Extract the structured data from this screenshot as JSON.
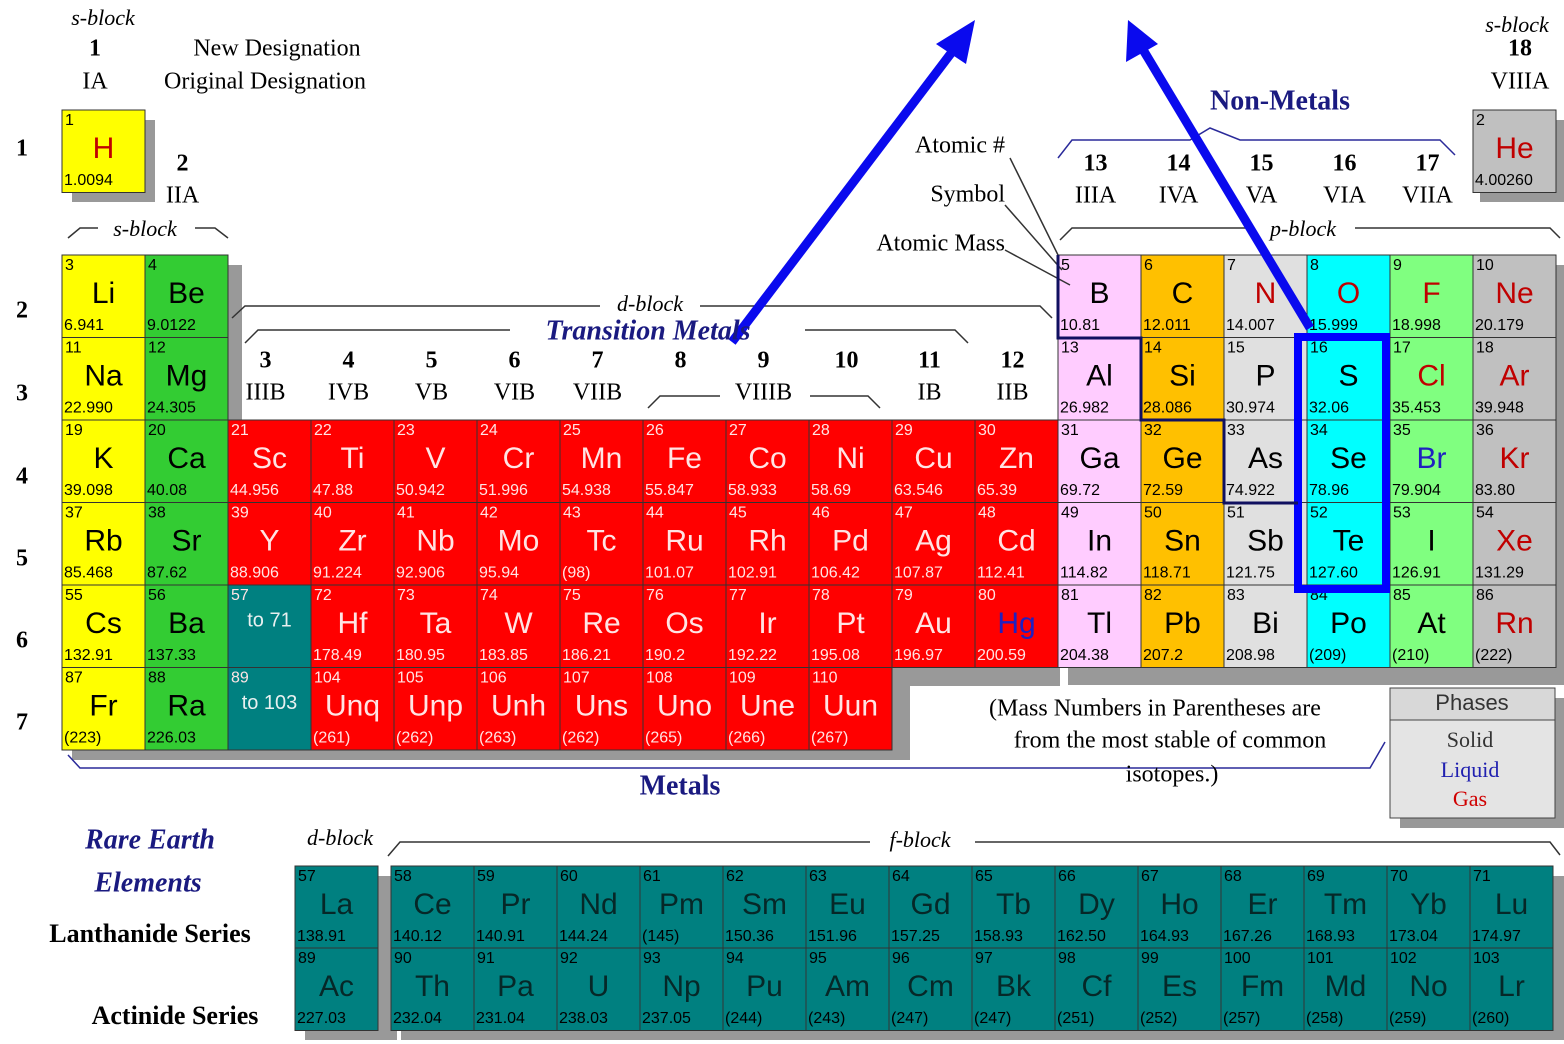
{
  "header": {
    "s_block_left": "s-block",
    "group_1_new": "1",
    "new_designation": "New Designation",
    "group_1_original": "IA",
    "original_designation": "Original Designation",
    "s_block_right": "s-block",
    "group_18_new": "18",
    "group_18_original": "VIIIA"
  },
  "groups": [
    {
      "new": "2",
      "original": "IIA"
    },
    {
      "new": "3",
      "original": "IIIB"
    },
    {
      "new": "4",
      "original": "IVB"
    },
    {
      "new": "5",
      "original": "VB"
    },
    {
      "new": "6",
      "original": "VIB"
    },
    {
      "new": "7",
      "original": "VIIB"
    },
    {
      "new": "8"
    },
    {
      "new": "9",
      "original": "VIIIB"
    },
    {
      "new": "10"
    },
    {
      "new": "11",
      "original": "IB"
    },
    {
      "new": "12",
      "original": "IIB"
    },
    {
      "new": "13",
      "original": "IIIA"
    },
    {
      "new": "14",
      "original": "IVA"
    },
    {
      "new": "15",
      "original": "VA"
    },
    {
      "new": "16",
      "original": "VIA"
    },
    {
      "new": "17",
      "original": "VIIA"
    }
  ],
  "labels": {
    "s_block_mid": "s-block",
    "d_block": "d-block",
    "transition_metals": "Transition Metals",
    "non_metals": "Non-Metals",
    "p_block": "p-block",
    "metals": "Metals",
    "rare_earth_1": "Rare Earth",
    "rare_earth_2": "Elements",
    "d_block_bottom": "d-block",
    "f_block": "f-block"
  },
  "key": {
    "atomic_number": "Atomic #",
    "symbol": "Symbol",
    "atomic_mass": "Atomic Mass"
  },
  "note": [
    "(Mass Numbers in Parentheses are",
    "from the most stable of common",
    "isotopes.)"
  ],
  "phases": {
    "title": "Phases",
    "solid": "Solid",
    "liquid": "Liquid",
    "gas": "Gas"
  },
  "period_labels": [
    "1",
    "2",
    "3",
    "4",
    "5",
    "6",
    "7"
  ],
  "table": {
    "periods": [
      [
        {
          "number": 1,
          "symbol": "H",
          "mass": "1.0094",
          "phase": "gas"
        },
        {
          "number": 2,
          "symbol": "He",
          "mass": "4.00260",
          "phase": "gas"
        }
      ],
      [
        {
          "number": 3,
          "symbol": "Li",
          "mass": "6.941"
        },
        {
          "number": 4,
          "symbol": "Be",
          "mass": "9.0122"
        },
        {
          "number": 5,
          "symbol": "B",
          "mass": "10.81"
        },
        {
          "number": 6,
          "symbol": "C",
          "mass": "12.011"
        },
        {
          "number": 7,
          "symbol": "N",
          "mass": "14.007",
          "phase": "gas"
        },
        {
          "number": 8,
          "symbol": "O",
          "mass": "15.999",
          "phase": "gas"
        },
        {
          "number": 9,
          "symbol": "F",
          "mass": "18.998",
          "phase": "gas"
        },
        {
          "number": 10,
          "symbol": "Ne",
          "mass": "20.179",
          "phase": "gas"
        }
      ],
      [
        {
          "number": 11,
          "symbol": "Na",
          "mass": "22.990"
        },
        {
          "number": 12,
          "symbol": "Mg",
          "mass": "24.305"
        },
        {
          "number": 13,
          "symbol": "Al",
          "mass": "26.982"
        },
        {
          "number": 14,
          "symbol": "Si",
          "mass": "28.086"
        },
        {
          "number": 15,
          "symbol": "P",
          "mass": "30.974"
        },
        {
          "number": 16,
          "symbol": "S",
          "mass": "32.06"
        },
        {
          "number": 17,
          "symbol": "Cl",
          "mass": "35.453",
          "phase": "gas"
        },
        {
          "number": 18,
          "symbol": "Ar",
          "mass": "39.948",
          "phase": "gas"
        }
      ],
      [
        {
          "number": 19,
          "symbol": "K",
          "mass": "39.098"
        },
        {
          "number": 20,
          "symbol": "Ca",
          "mass": "40.08"
        },
        {
          "number": 21,
          "symbol": "Sc",
          "mass": "44.956"
        },
        {
          "number": 22,
          "symbol": "Ti",
          "mass": "47.88"
        },
        {
          "number": 23,
          "symbol": "V",
          "mass": "50.942"
        },
        {
          "number": 24,
          "symbol": "Cr",
          "mass": "51.996"
        },
        {
          "number": 25,
          "symbol": "Mn",
          "mass": "54.938"
        },
        {
          "number": 26,
          "symbol": "Fe",
          "mass": "55.847"
        },
        {
          "number": 27,
          "symbol": "Co",
          "mass": "58.933"
        },
        {
          "number": 28,
          "symbol": "Ni",
          "mass": "58.69"
        },
        {
          "number": 29,
          "symbol": "Cu",
          "mass": "63.546"
        },
        {
          "number": 30,
          "symbol": "Zn",
          "mass": "65.39"
        },
        {
          "number": 31,
          "symbol": "Ga",
          "mass": "69.72"
        },
        {
          "number": 32,
          "symbol": "Ge",
          "mass": "72.59"
        },
        {
          "number": 33,
          "symbol": "As",
          "mass": "74.922"
        },
        {
          "number": 34,
          "symbol": "Se",
          "mass": "78.96"
        },
        {
          "number": 35,
          "symbol": "Br",
          "mass": "79.904",
          "phase": "liquid"
        },
        {
          "number": 36,
          "symbol": "Kr",
          "mass": "83.80",
          "phase": "gas"
        }
      ],
      [
        {
          "number": 37,
          "symbol": "Rb",
          "mass": "85.468"
        },
        {
          "number": 38,
          "symbol": "Sr",
          "mass": "87.62"
        },
        {
          "number": 39,
          "symbol": "Y",
          "mass": "88.906"
        },
        {
          "number": 40,
          "symbol": "Zr",
          "mass": "91.224"
        },
        {
          "number": 41,
          "symbol": "Nb",
          "mass": "92.906"
        },
        {
          "number": 42,
          "symbol": "Mo",
          "mass": "95.94"
        },
        {
          "number": 43,
          "symbol": "Tc",
          "mass": "(98)"
        },
        {
          "number": 44,
          "symbol": "Ru",
          "mass": "101.07"
        },
        {
          "number": 45,
          "symbol": "Rh",
          "mass": "102.91"
        },
        {
          "number": 46,
          "symbol": "Pd",
          "mass": "106.42"
        },
        {
          "number": 47,
          "symbol": "Ag",
          "mass": "107.87"
        },
        {
          "number": 48,
          "symbol": "Cd",
          "mass": "112.41"
        },
        {
          "number": 49,
          "symbol": "In",
          "mass": "114.82"
        },
        {
          "number": 50,
          "symbol": "Sn",
          "mass": "118.71"
        },
        {
          "number": 51,
          "symbol": "Sb",
          "mass": "121.75"
        },
        {
          "number": 52,
          "symbol": "Te",
          "mass": "127.60"
        },
        {
          "number": 53,
          "symbol": "I",
          "mass": "126.91"
        },
        {
          "number": 54,
          "symbol": "Xe",
          "mass": "131.29",
          "phase": "gas"
        }
      ],
      [
        {
          "number": 55,
          "symbol": "Cs",
          "mass": "132.91"
        },
        {
          "number": 56,
          "symbol": "Ba",
          "mass": "137.33"
        },
        {
          "number": 57,
          "range": "to 71"
        },
        {
          "number": 72,
          "symbol": "Hf",
          "mass": "178.49"
        },
        {
          "number": 73,
          "symbol": "Ta",
          "mass": "180.95"
        },
        {
          "number": 74,
          "symbol": "W",
          "mass": "183.85"
        },
        {
          "number": 75,
          "symbol": "Re",
          "mass": "186.21"
        },
        {
          "number": 76,
          "symbol": "Os",
          "mass": "190.2"
        },
        {
          "number": 77,
          "symbol": "Ir",
          "mass": "192.22"
        },
        {
          "number": 78,
          "symbol": "Pt",
          "mass": "195.08"
        },
        {
          "number": 79,
          "symbol": "Au",
          "mass": "196.97"
        },
        {
          "number": 80,
          "symbol": "Hg",
          "mass": "200.59",
          "phase": "liquid"
        },
        {
          "number": 81,
          "symbol": "Tl",
          "mass": "204.38"
        },
        {
          "number": 82,
          "symbol": "Pb",
          "mass": "207.2"
        },
        {
          "number": 83,
          "symbol": "Bi",
          "mass": "208.98"
        },
        {
          "number": 84,
          "symbol": "Po",
          "mass": "(209)"
        },
        {
          "number": 85,
          "symbol": "At",
          "mass": "(210)"
        },
        {
          "number": 86,
          "symbol": "Rn",
          "mass": "(222)",
          "phase": "gas"
        }
      ],
      [
        {
          "number": 87,
          "symbol": "Fr",
          "mass": "(223)"
        },
        {
          "number": 88,
          "symbol": "Ra",
          "mass": "226.03"
        },
        {
          "number": 89,
          "range": "to 103"
        },
        {
          "number": 104,
          "symbol": "Unq",
          "mass": "(261)"
        },
        {
          "number": 105,
          "symbol": "Unp",
          "mass": "(262)"
        },
        {
          "number": 106,
          "symbol": "Unh",
          "mass": "(263)"
        },
        {
          "number": 107,
          "symbol": "Uns",
          "mass": "(262)"
        },
        {
          "number": 108,
          "symbol": "Uno",
          "mass": "(265)"
        },
        {
          "number": 109,
          "symbol": "Une",
          "mass": "(266)"
        },
        {
          "number": 110,
          "symbol": "Uun",
          "mass": "(267)"
        }
      ]
    ]
  },
  "lanthanides": {
    "label": "Lanthanide Series",
    "elements": [
      {
        "number": 57,
        "symbol": "La",
        "mass": "138.91"
      },
      {
        "number": 58,
        "symbol": "Ce",
        "mass": "140.12"
      },
      {
        "number": 59,
        "symbol": "Pr",
        "mass": "140.91"
      },
      {
        "number": 60,
        "symbol": "Nd",
        "mass": "144.24"
      },
      {
        "number": 61,
        "symbol": "Pm",
        "mass": "(145)"
      },
      {
        "number": 62,
        "symbol": "Sm",
        "mass": "150.36"
      },
      {
        "number": 63,
        "symbol": "Eu",
        "mass": "151.96"
      },
      {
        "number": 64,
        "symbol": "Gd",
        "mass": "157.25"
      },
      {
        "number": 65,
        "symbol": "Tb",
        "mass": "158.93"
      },
      {
        "number": 66,
        "symbol": "Dy",
        "mass": "162.50"
      },
      {
        "number": 67,
        "symbol": "Ho",
        "mass": "164.93"
      },
      {
        "number": 68,
        "symbol": "Er",
        "mass": "167.26"
      },
      {
        "number": 69,
        "symbol": "Tm",
        "mass": "168.93"
      },
      {
        "number": 70,
        "symbol": "Yb",
        "mass": "173.04"
      },
      {
        "number": 71,
        "symbol": "Lu",
        "mass": "174.97"
      }
    ]
  },
  "actinides": {
    "label": "Actinide Series",
    "elements": [
      {
        "number": 89,
        "symbol": "Ac",
        "mass": "227.03"
      },
      {
        "number": 90,
        "symbol": "Th",
        "mass": "232.04"
      },
      {
        "number": 91,
        "symbol": "Pa",
        "mass": "231.04"
      },
      {
        "number": 92,
        "symbol": "U",
        "mass": "238.03"
      },
      {
        "number": 93,
        "symbol": "Np",
        "mass": "237.05"
      },
      {
        "number": 94,
        "symbol": "Pu",
        "mass": "(244)"
      },
      {
        "number": 95,
        "symbol": "Am",
        "mass": "(243)"
      },
      {
        "number": 96,
        "symbol": "Cm",
        "mass": "(247)"
      },
      {
        "number": 97,
        "symbol": "Bk",
        "mass": "(247)"
      },
      {
        "number": 98,
        "symbol": "Cf",
        "mass": "(251)"
      },
      {
        "number": 99,
        "symbol": "Es",
        "mass": "(252)"
      },
      {
        "number": 100,
        "symbol": "Fm",
        "mass": "(257)"
      },
      {
        "number": 101,
        "symbol": "Md",
        "mass": "(258)"
      },
      {
        "number": 102,
        "symbol": "No",
        "mass": "(259)"
      },
      {
        "number": 103,
        "symbol": "Lr",
        "mass": "(260)"
      }
    ]
  }
}
